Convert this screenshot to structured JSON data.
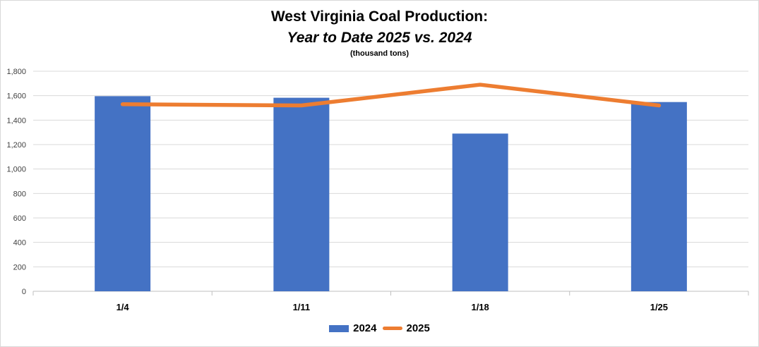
{
  "chart_data": {
    "type": "bar",
    "title": "West Virginia Coal Production:",
    "subtitle": "Year to Date 2025 vs. 2024",
    "units": "(thousand tons)",
    "categories": [
      "1/4",
      "1/11",
      "1/18",
      "1/25"
    ],
    "series": [
      {
        "name": "2024",
        "type": "bar",
        "color": "#4472C4",
        "values": [
          1596,
          1583,
          1290,
          1548
        ]
      },
      {
        "name": "2025",
        "type": "line",
        "color": "#ED7D31",
        "values": [
          1530,
          1520,
          1690,
          1520
        ]
      }
    ],
    "ylim": [
      0,
      1800
    ],
    "yticks": [
      0,
      200,
      400,
      600,
      800,
      1000,
      1200,
      1400,
      1600,
      1800
    ],
    "ytick_labels": [
      "0",
      "200",
      "400",
      "600",
      "800",
      "1,000",
      "1,200",
      "1,400",
      "1,600",
      "1,800"
    ],
    "grid": true,
    "legend": "bottom"
  }
}
